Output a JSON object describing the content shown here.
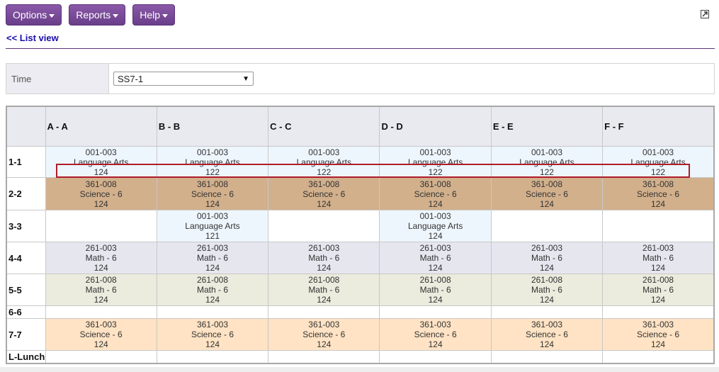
{
  "toolbar": {
    "options_label": "Options",
    "reports_label": "Reports",
    "help_label": "Help"
  },
  "list_view_link": "<< List view",
  "time_filter": {
    "label": "Time",
    "selected": "SS7-1"
  },
  "schedule": {
    "columns": [
      "A - A",
      "B - B",
      "C - C",
      "D - D",
      "E - E",
      "F - F"
    ],
    "rows": [
      {
        "label": "1-1",
        "cells": [
          [
            "001-003",
            "Language Arts",
            "124"
          ],
          [
            "001-003",
            "Language Arts",
            "122"
          ],
          [
            "001-003",
            "Language Arts",
            "122"
          ],
          [
            "001-003",
            "Language Arts",
            "122"
          ],
          [
            "001-003",
            "Language Arts",
            "122"
          ],
          [
            "001-003",
            "Language Arts",
            "122"
          ]
        ]
      },
      {
        "label": "2-2",
        "cells": [
          [
            "361-008",
            "Science - 6",
            "124"
          ],
          [
            "361-008",
            "Science - 6",
            "124"
          ],
          [
            "361-008",
            "Science - 6",
            "124"
          ],
          [
            "361-008",
            "Science - 6",
            "124"
          ],
          [
            "361-008",
            "Science - 6",
            "124"
          ],
          [
            "361-008",
            "Science - 6",
            "124"
          ]
        ]
      },
      {
        "label": "3-3",
        "cells": [
          [],
          [
            "001-003",
            "Language Arts",
            "121"
          ],
          [],
          [
            "001-003",
            "Language Arts",
            "124"
          ],
          [],
          []
        ]
      },
      {
        "label": "4-4",
        "cells": [
          [
            "261-003",
            "Math - 6",
            "124"
          ],
          [
            "261-003",
            "Math - 6",
            "124"
          ],
          [
            "261-003",
            "Math - 6",
            "124"
          ],
          [
            "261-003",
            "Math - 6",
            "124"
          ],
          [
            "261-003",
            "Math - 6",
            "124"
          ],
          [
            "261-003",
            "Math - 6",
            "124"
          ]
        ]
      },
      {
        "label": "5-5",
        "cells": [
          [
            "261-008",
            "Math - 6",
            "124"
          ],
          [
            "261-008",
            "Math - 6",
            "124"
          ],
          [
            "261-008",
            "Math - 6",
            "124"
          ],
          [
            "261-008",
            "Math - 6",
            "124"
          ],
          [
            "261-008",
            "Math - 6",
            "124"
          ],
          [
            "261-008",
            "Math - 6",
            "124"
          ]
        ]
      },
      {
        "label": "6-6",
        "cells": [
          [],
          [],
          [],
          [],
          [],
          []
        ]
      },
      {
        "label": "7-7",
        "cells": [
          [
            "361-003",
            "Science - 6",
            "124"
          ],
          [
            "361-003",
            "Science - 6",
            "124"
          ],
          [
            "361-003",
            "Science - 6",
            "124"
          ],
          [
            "361-003",
            "Science - 6",
            "124"
          ],
          [
            "361-003",
            "Science - 6",
            "124"
          ],
          [
            "361-003",
            "Science - 6",
            "124"
          ]
        ]
      },
      {
        "label": "L-Lunch",
        "cells": [
          [],
          [],
          [],
          [],
          [],
          []
        ]
      }
    ]
  },
  "colors": {
    "menu_purple": "#6a3e8a",
    "link_blue": "#1a0dab",
    "language_arts": "#eef6fd",
    "science_361_008": "#d2b08c",
    "math_261_003": "#e6e6ef",
    "math_261_008": "#ebebde",
    "science_361_003": "#ffe3c4",
    "highlight_red": "#b01c2a"
  }
}
